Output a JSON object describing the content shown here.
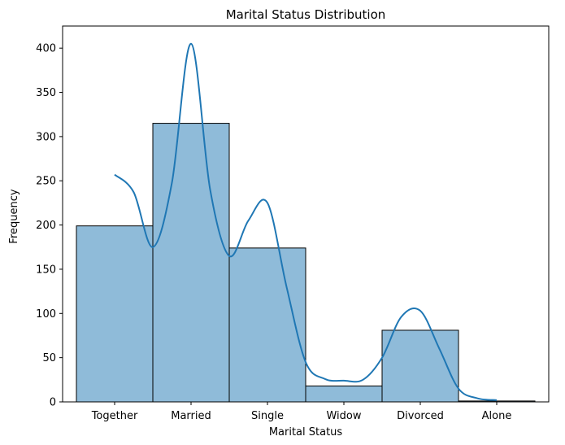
{
  "chart_data": {
    "type": "bar",
    "title": "Marital Status Distribution",
    "xlabel": "Marital Status",
    "ylabel": "Frequency",
    "categories": [
      "Together",
      "Married",
      "Single",
      "Widow",
      "Divorced",
      "Alone"
    ],
    "values": [
      199,
      315,
      174,
      18,
      81,
      1
    ],
    "ylim": [
      0,
      425
    ],
    "yticks": [
      0,
      50,
      100,
      150,
      200,
      250,
      300,
      350,
      400
    ],
    "grid": false,
    "bar_color": "#1f77b4",
    "bar_alpha": 0.5,
    "bar_edge_color": "#000000",
    "kde": {
      "color": "#1f77b4",
      "x": [
        0,
        0.25,
        0.5,
        0.75,
        1.0,
        1.25,
        1.5,
        1.75,
        2.0,
        2.25,
        2.5,
        2.75,
        3.0,
        3.25,
        3.5,
        3.75,
        4.0,
        4.25,
        4.5,
        4.75,
        5.0
      ],
      "y": [
        257,
        237,
        175,
        248,
        405,
        240,
        165,
        205,
        225,
        130,
        45,
        26,
        24,
        25,
        50,
        96,
        103,
        60,
        15,
        4,
        2
      ]
    }
  }
}
